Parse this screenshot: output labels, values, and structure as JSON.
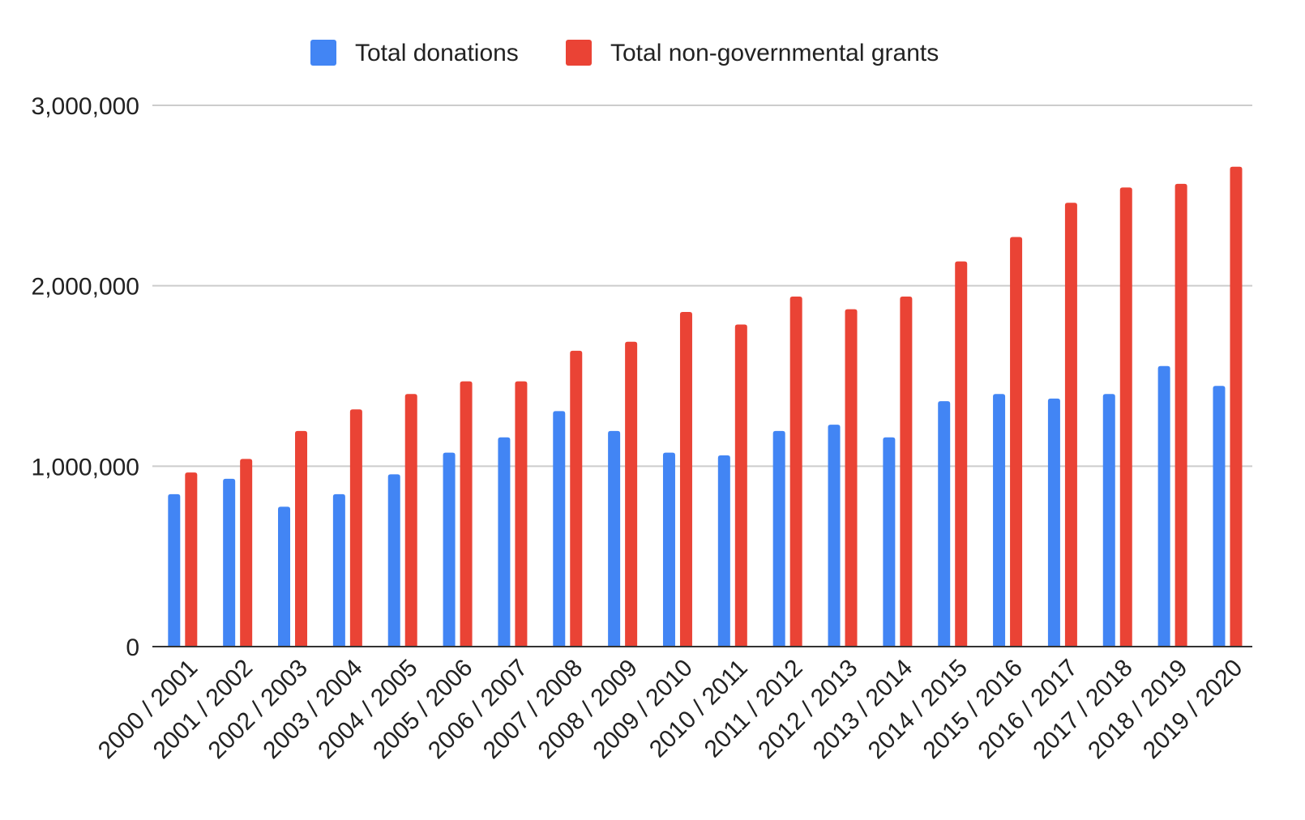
{
  "chart_data": {
    "type": "bar",
    "title": "",
    "xlabel": "",
    "ylabel": "",
    "ylim": [
      0,
      3000000
    ],
    "yticks": [
      {
        "value": 0,
        "label": "0"
      },
      {
        "value": 1000000,
        "label": "1,000,000"
      },
      {
        "value": 2000000,
        "label": "2,000,000"
      },
      {
        "value": 3000000,
        "label": "3,000,000"
      }
    ],
    "grid": true,
    "legend_position": "top",
    "categories": [
      "2000 / 2001",
      "2001 / 2002",
      "2002 / 2003",
      "2003 / 2004",
      "2004 / 2005",
      "2005 / 2006",
      "2006 / 2007",
      "2007 / 2008",
      "2008 / 2009",
      "2009 / 2010",
      "2010 / 2011",
      "2011 / 2012",
      "2012 / 2013",
      "2013 / 2014",
      "2014 / 2015",
      "2015 / 2016",
      "2016 / 2017",
      "2017 / 2018",
      "2018 / 2019",
      "2019 / 2020"
    ],
    "series": [
      {
        "name": "Total donations",
        "color": "#4285f4",
        "values": [
          845000,
          930000,
          775000,
          845000,
          955000,
          1075000,
          1160000,
          1305000,
          1195000,
          1075000,
          1060000,
          1195000,
          1230000,
          1160000,
          1360000,
          1400000,
          1375000,
          1400000,
          1555000,
          1445000
        ]
      },
      {
        "name": "Total non-governmental grants",
        "color": "#ea4335",
        "values": [
          965000,
          1040000,
          1195000,
          1315000,
          1400000,
          1470000,
          1470000,
          1640000,
          1690000,
          1855000,
          1785000,
          1940000,
          1870000,
          1940000,
          2135000,
          2270000,
          2460000,
          2545000,
          2565000,
          2660000
        ]
      }
    ]
  }
}
